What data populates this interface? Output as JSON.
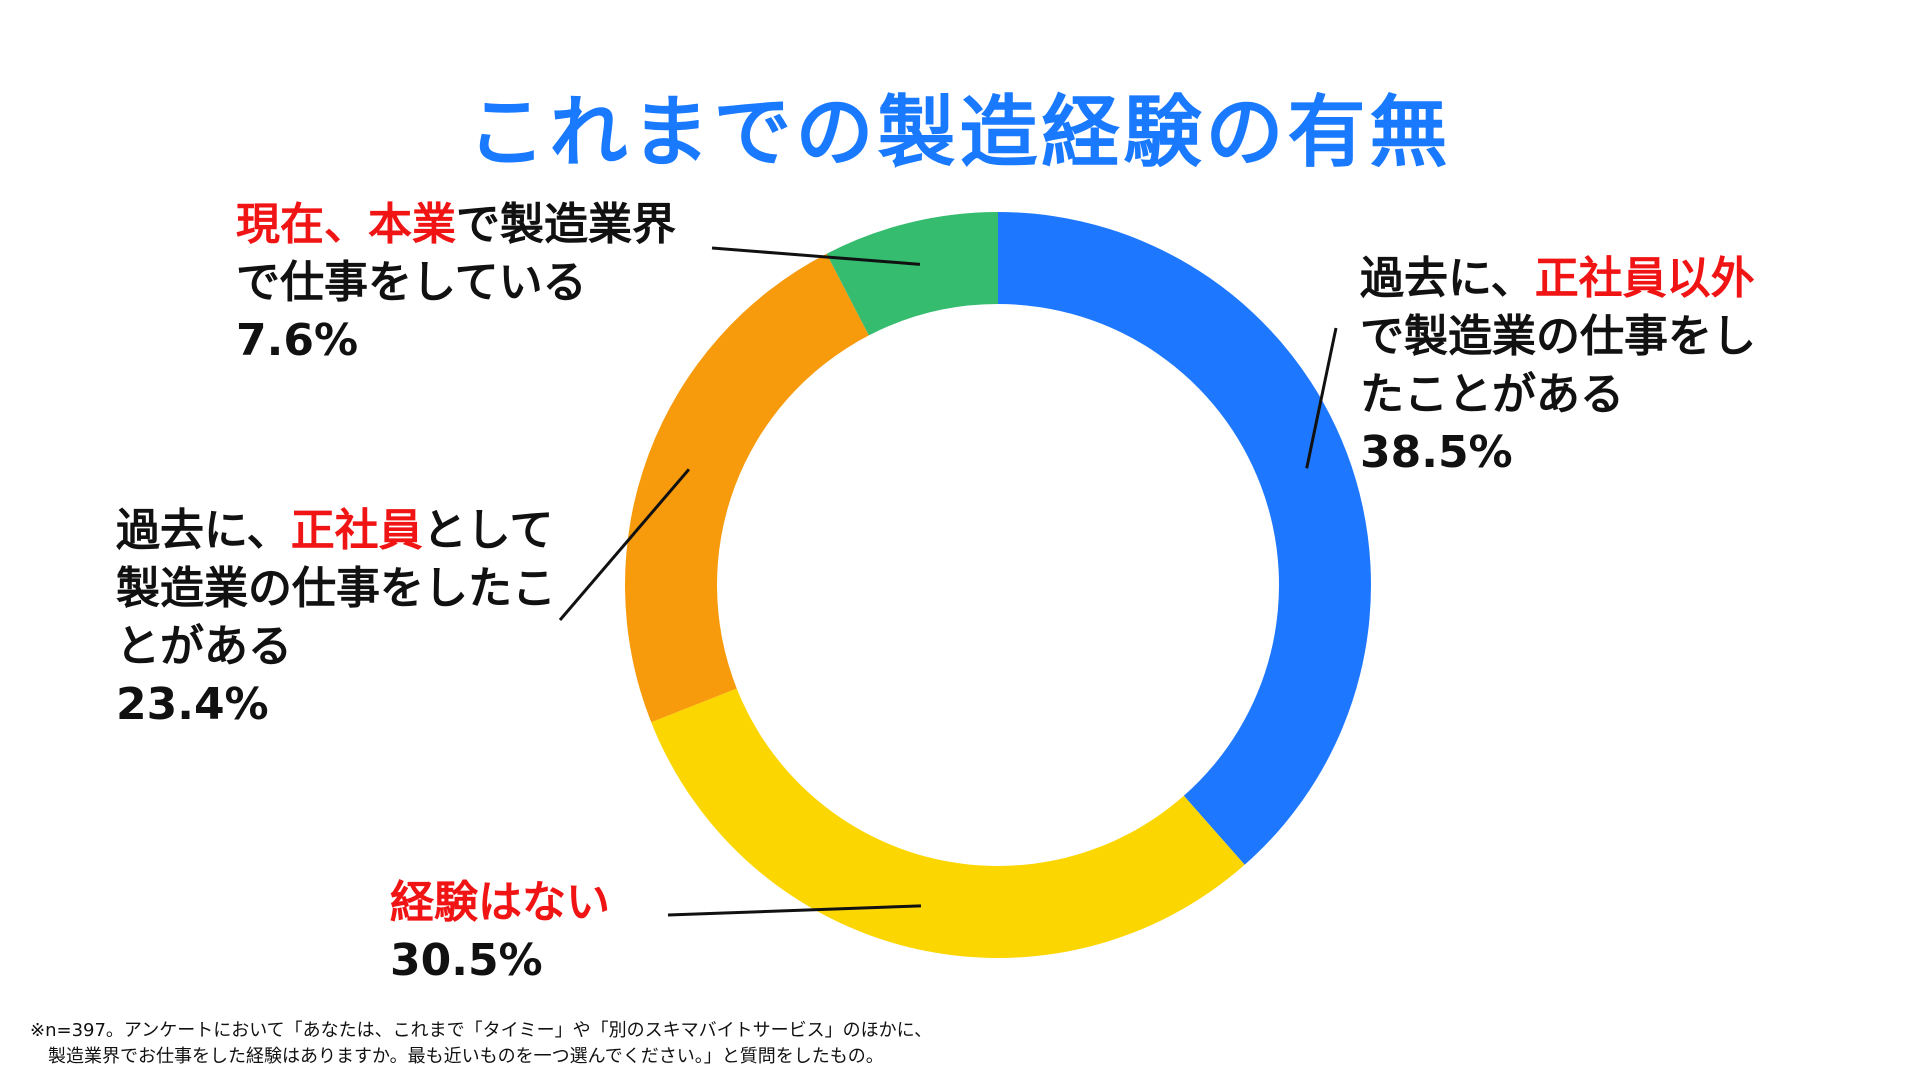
{
  "title": "これまでの製造経験の有無",
  "chart_data": {
    "type": "donut",
    "title": "これまでの製造経験の有無",
    "unit": "%",
    "slices": [
      {
        "key": "nonreg",
        "label": "過去に、正社員以外で製造業の仕事をしたことがある",
        "value": 38.5,
        "value_label": "38.5%",
        "color": "#1e78ff"
      },
      {
        "key": "none",
        "label": "経験はない",
        "value": 30.5,
        "value_label": "30.5%",
        "color": "#fcd600"
      },
      {
        "key": "reg",
        "label": "過去に、正社員として製造業の仕事をしたことがある",
        "value": 23.4,
        "value_label": "23.4%",
        "color": "#f79a0c"
      },
      {
        "key": "current",
        "label": "現在、本業で製造業界で仕事をしている",
        "value": 7.6,
        "value_label": "7.6%",
        "color": "#35bc6e"
      }
    ]
  },
  "labels": {
    "current": {
      "hl": "現在、本業",
      "line1": "で製造業界",
      "line2": "で仕事をしている",
      "pct": "7.6%"
    },
    "nonreg": {
      "pre": "過去に、",
      "hl": "正社員以外",
      "line2": "で製造業の仕事をし",
      "line3": "たことがある",
      "pct": "38.5%"
    },
    "reg": {
      "pre": "過去に、",
      "hl": "正社員",
      "post": "として",
      "line2": "製造業の仕事をしたこ",
      "line3": "とがある",
      "pct": "23.4%"
    },
    "none": {
      "hl": "経験はない",
      "pct": "30.5%"
    }
  },
  "footnote": {
    "line1": "※n=397。アンケートにおいて「あなたは、これまで「タイミー」や「別のスキマバイトサービス」のほかに、",
    "line2": "製造業界でお仕事をした経験はありますか。最も近いものを一つ選んでください。」と質問をしたもの。"
  }
}
